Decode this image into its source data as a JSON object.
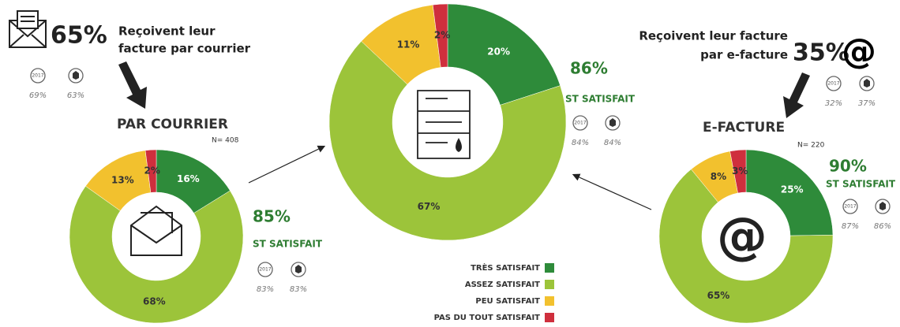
{
  "chart_data": [
    {
      "type": "donut",
      "title": "PAR COURRIER",
      "n": "N= 408",
      "values": [
        16,
        68,
        13,
        2
      ],
      "value_labels": [
        "16%",
        "68%",
        "13%",
        "2%"
      ],
      "share": "65%",
      "caption": [
        "Reçoivent leur",
        "facture par courrier"
      ],
      "share_badges": [
        {
          "label": "2017",
          "value": "69%"
        },
        {
          "value": "63%"
        }
      ],
      "summary": "85%",
      "summary_label": "ST SATISFAIT",
      "badges": [
        {
          "label": "2017",
          "value": "83%"
        },
        {
          "value": "83%"
        }
      ]
    },
    {
      "type": "donut",
      "categories": [
        "TRÈS SATISFAIT",
        "ASSEZ SATISFAIT",
        "PEU SATISFAIT",
        "PAS DU TOUT SATISFAIT"
      ],
      "colors": [
        "#2e8b3a",
        "#9cc43a",
        "#f2c12e",
        "#cf2f3d"
      ],
      "values": [
        20,
        67,
        11,
        2
      ],
      "value_labels": [
        "20%",
        "67%",
        "11%",
        "2%"
      ],
      "summary": "86%",
      "summary_label": "ST SATISFAIT",
      "badges": [
        {
          "label": "2017",
          "value": "84%"
        },
        {
          "value": "84%"
        }
      ]
    },
    {
      "type": "donut",
      "title": "E-FACTURE",
      "n": "N= 220",
      "icon": "@",
      "values": [
        25,
        65,
        8,
        3
      ],
      "value_labels": [
        "25%",
        "65%",
        "8%",
        "3%"
      ],
      "share": "35%",
      "caption": [
        "Reçoivent leur facture",
        "par e-facture"
      ],
      "share_badges": [
        {
          "label": "2017",
          "value": "32%"
        },
        {
          "value": "37%"
        }
      ],
      "summary": "90%",
      "summary_label": "ST SATISFAIT",
      "badges": [
        {
          "label": "2017",
          "value": "87%"
        },
        {
          "value": "86%"
        }
      ]
    }
  ]
}
